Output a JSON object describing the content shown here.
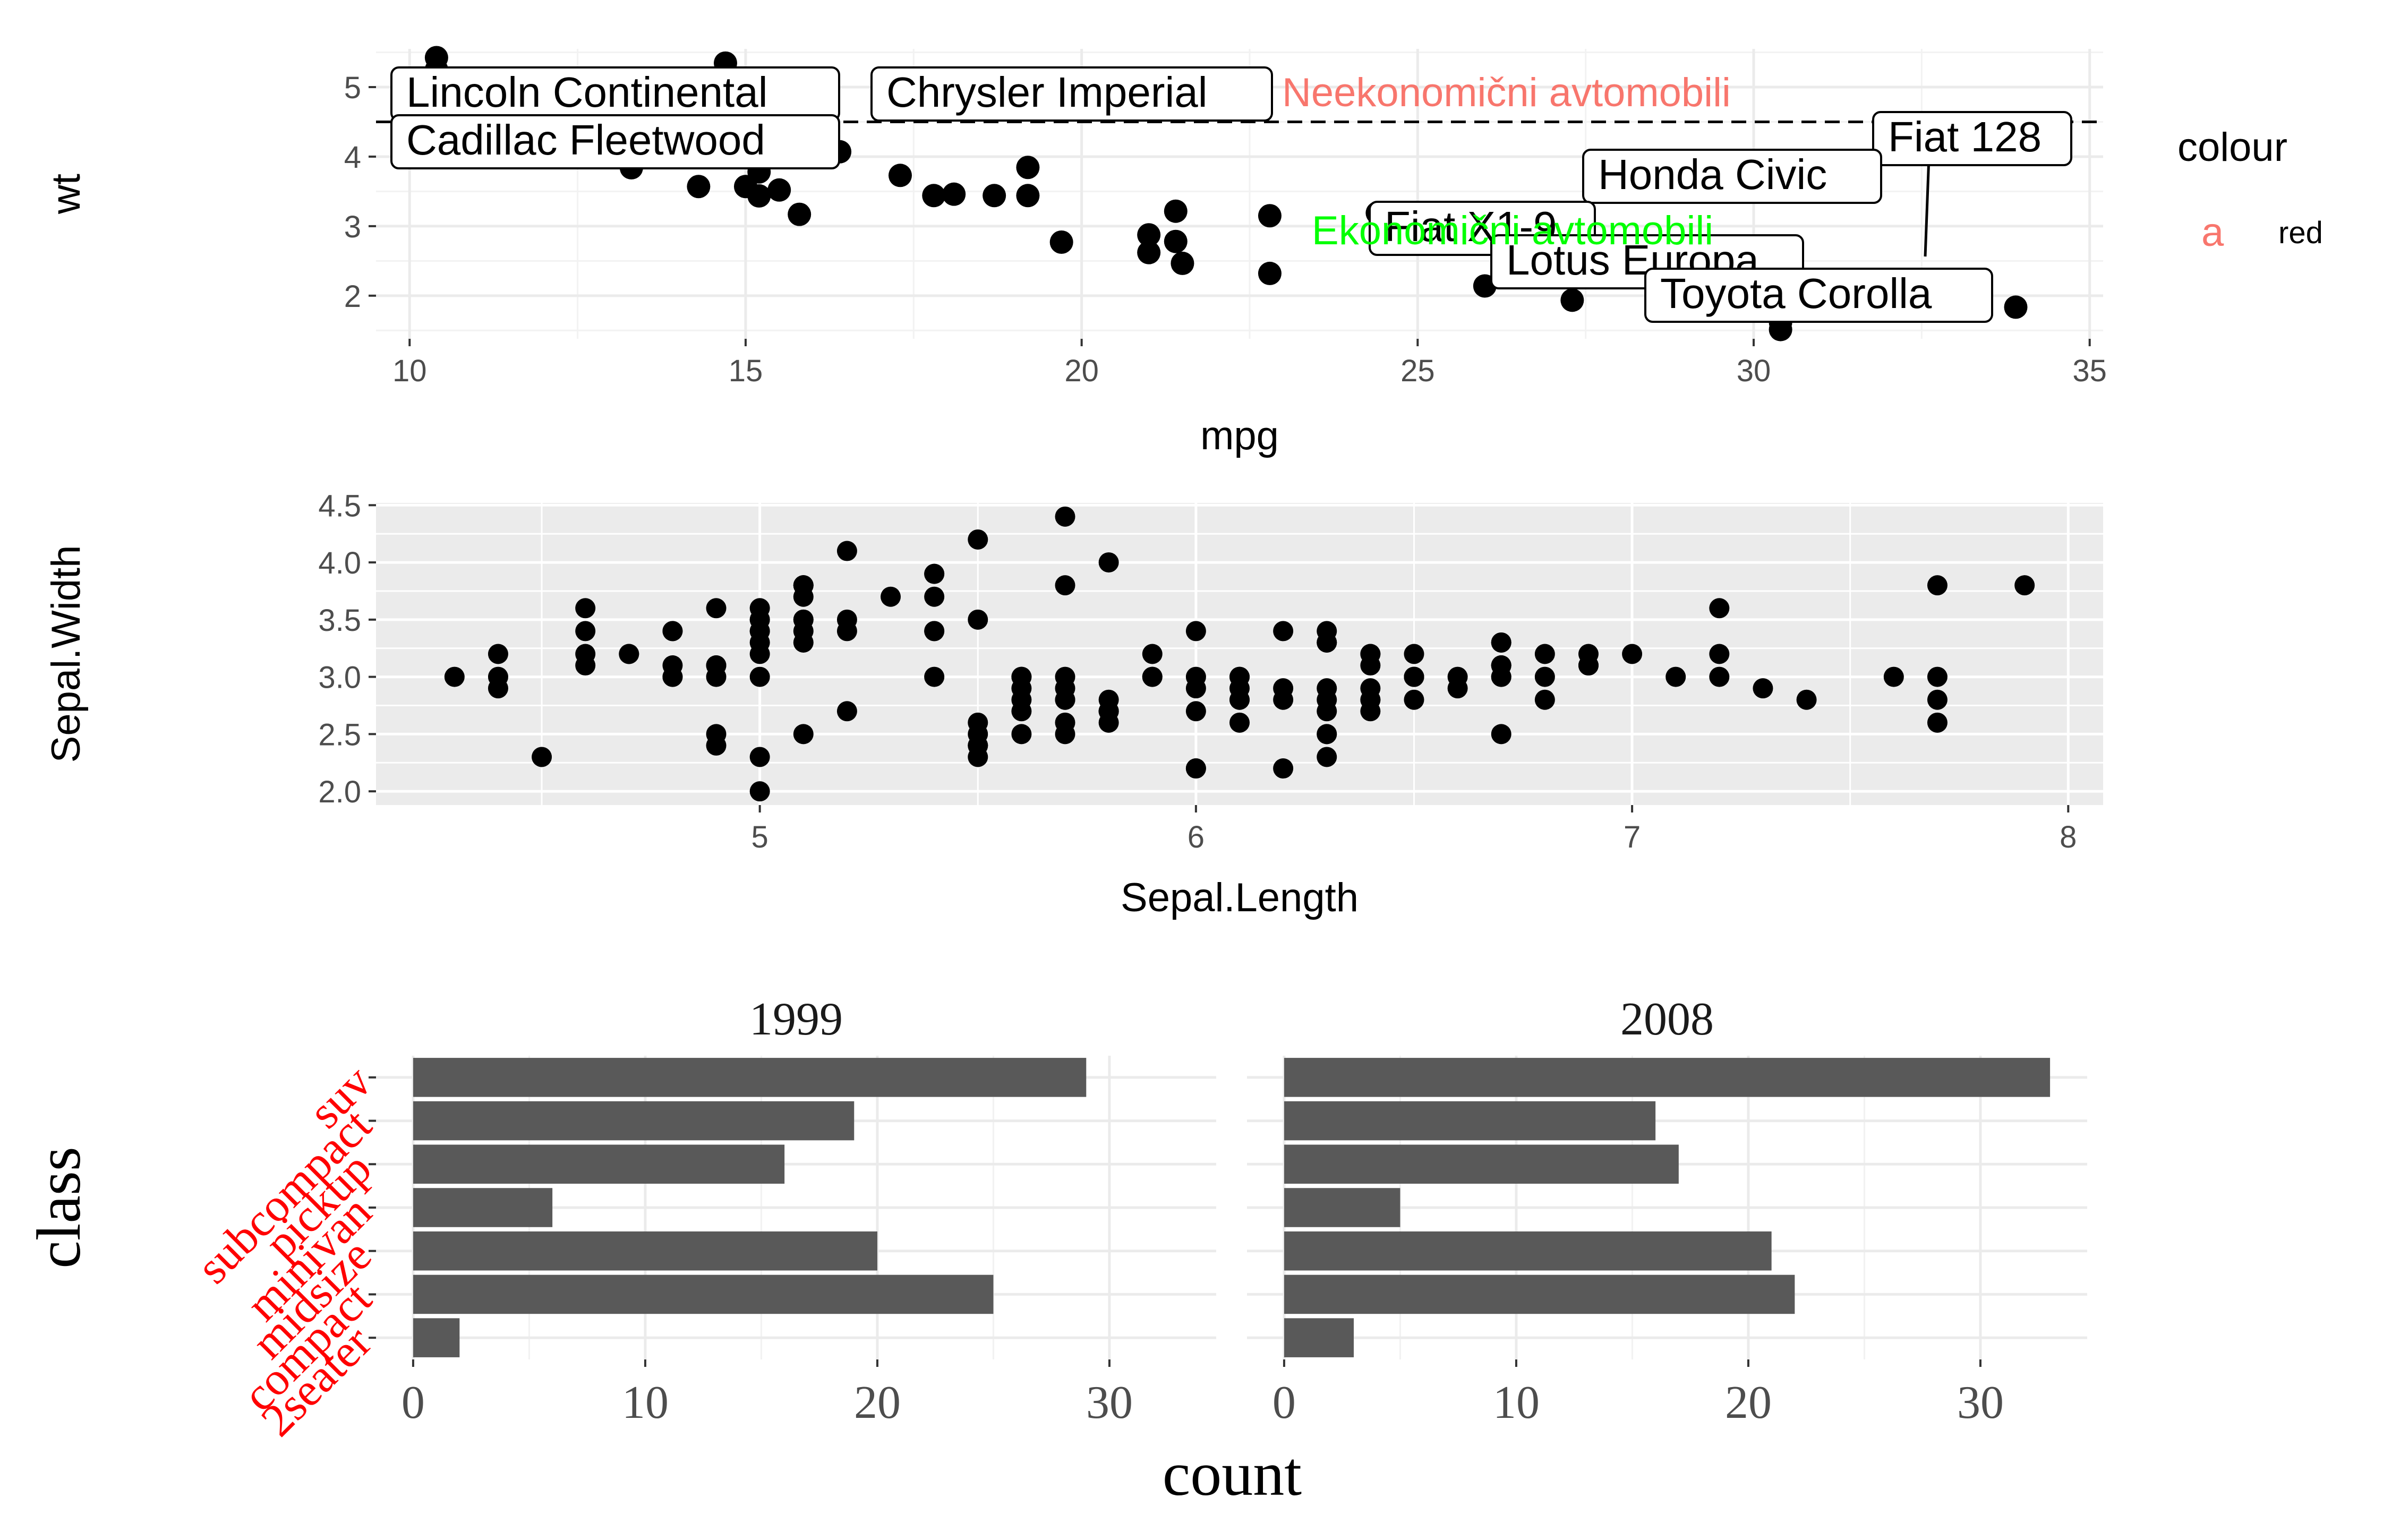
{
  "figure": {
    "chart_data": [
      {
        "type": "scatter",
        "panel": "mtcars",
        "xlabel": "mpg",
        "ylabel": "wt",
        "xlim": [
          9.5,
          35.2
        ],
        "ylim": [
          1.38,
          5.55
        ],
        "xticks": [
          10,
          15,
          20,
          25,
          30,
          35
        ],
        "yticks": [
          2,
          3,
          4,
          5
        ],
        "grid": true,
        "background": "white",
        "hline": 4.5,
        "points": [
          [
            21.0,
            2.62
          ],
          [
            21.0,
            2.875
          ],
          [
            22.8,
            2.32
          ],
          [
            21.4,
            3.215
          ],
          [
            18.7,
            3.44
          ],
          [
            18.1,
            3.46
          ],
          [
            14.3,
            3.57
          ],
          [
            24.4,
            3.19
          ],
          [
            22.8,
            3.15
          ],
          [
            19.2,
            3.44
          ],
          [
            17.8,
            3.44
          ],
          [
            16.4,
            4.07
          ],
          [
            17.3,
            3.73
          ],
          [
            15.2,
            3.78
          ],
          [
            10.4,
            5.25
          ],
          [
            10.4,
            5.424
          ],
          [
            14.7,
            5.345
          ],
          [
            32.4,
            2.2
          ],
          [
            30.4,
            1.615
          ],
          [
            33.9,
            1.835
          ],
          [
            21.5,
            2.465
          ],
          [
            15.5,
            3.52
          ],
          [
            15.2,
            3.435
          ],
          [
            13.3,
            3.84
          ],
          [
            19.2,
            3.845
          ],
          [
            27.3,
            1.935
          ],
          [
            26.0,
            2.14
          ],
          [
            30.4,
            1.513
          ],
          [
            15.8,
            3.17
          ],
          [
            19.7,
            2.77
          ],
          [
            15.0,
            3.57
          ],
          [
            21.4,
            2.78
          ]
        ],
        "labels": [
          {
            "text": "Lincoln Continental",
            "x": 10.4,
            "y": 5.424
          },
          {
            "text": "Cadillac Fleetwood",
            "x": 10.4,
            "y": 5.25
          },
          {
            "text": "Chrysler Imperial",
            "x": 14.7,
            "y": 5.345
          },
          {
            "text": "Fiat 128",
            "x": 32.4,
            "y": 2.2
          },
          {
            "text": "Honda Civic",
            "x": 30.4,
            "y": 1.615
          },
          {
            "text": "Fiat X1-9",
            "x": 27.3,
            "y": 1.935
          },
          {
            "text": "Lotus Europa",
            "x": 30.4,
            "y": 1.513
          },
          {
            "text": "Toyota Corolla",
            "x": 33.9,
            "y": 1.835
          }
        ],
        "annotations": [
          {
            "text": "Neekonomični avtomobili",
            "color": "#F8766D"
          },
          {
            "text": "Ekonomični avtomobili",
            "color": "#00FF00"
          }
        ],
        "legend": {
          "title": "colour",
          "key_glyph": "a",
          "label": "red",
          "key_color": "#F8766D",
          "position": "right"
        }
      },
      {
        "type": "scatter",
        "panel": "iris",
        "xlabel": "Sepal.Length",
        "ylabel": "Sepal.Width",
        "xlim": [
          4.12,
          8.08
        ],
        "ylim": [
          1.88,
          4.52
        ],
        "xticks": [
          5,
          6,
          7,
          8
        ],
        "yticks": [
          2.0,
          2.5,
          3.0,
          3.5,
          4.0,
          4.5
        ],
        "ytick_labels": [
          "2.0",
          "2.5",
          "3.0",
          "3.5",
          "4.0",
          "4.5"
        ],
        "grid": true,
        "background": "#EBEBEB",
        "points": [
          [
            5.1,
            3.5
          ],
          [
            4.9,
            3.0
          ],
          [
            4.7,
            3.2
          ],
          [
            4.6,
            3.1
          ],
          [
            5.0,
            3.6
          ],
          [
            5.4,
            3.9
          ],
          [
            4.6,
            3.4
          ],
          [
            5.0,
            3.4
          ],
          [
            4.4,
            2.9
          ],
          [
            4.9,
            3.1
          ],
          [
            5.4,
            3.7
          ],
          [
            4.8,
            3.4
          ],
          [
            4.8,
            3.0
          ],
          [
            4.3,
            3.0
          ],
          [
            5.8,
            4.0
          ],
          [
            5.7,
            4.4
          ],
          [
            5.4,
            3.9
          ],
          [
            5.1,
            3.5
          ],
          [
            5.7,
            3.8
          ],
          [
            5.1,
            3.8
          ],
          [
            5.4,
            3.4
          ],
          [
            5.1,
            3.7
          ],
          [
            4.6,
            3.6
          ],
          [
            5.1,
            3.3
          ],
          [
            4.8,
            3.4
          ],
          [
            5.0,
            3.0
          ],
          [
            5.0,
            3.4
          ],
          [
            5.2,
            3.5
          ],
          [
            5.2,
            3.4
          ],
          [
            4.7,
            3.2
          ],
          [
            4.8,
            3.1
          ],
          [
            5.4,
            3.4
          ],
          [
            5.2,
            4.1
          ],
          [
            5.5,
            4.2
          ],
          [
            4.9,
            3.1
          ],
          [
            5.0,
            3.2
          ],
          [
            5.5,
            3.5
          ],
          [
            4.9,
            3.6
          ],
          [
            4.4,
            3.0
          ],
          [
            5.1,
            3.4
          ],
          [
            5.0,
            3.5
          ],
          [
            4.5,
            2.3
          ],
          [
            4.4,
            3.2
          ],
          [
            5.0,
            3.5
          ],
          [
            5.1,
            3.8
          ],
          [
            4.8,
            3.0
          ],
          [
            5.1,
            3.8
          ],
          [
            4.6,
            3.2
          ],
          [
            5.3,
            3.7
          ],
          [
            5.0,
            3.3
          ],
          [
            7.0,
            3.2
          ],
          [
            6.4,
            3.2
          ],
          [
            6.9,
            3.1
          ],
          [
            5.5,
            2.3
          ],
          [
            6.5,
            2.8
          ],
          [
            5.7,
            2.8
          ],
          [
            6.3,
            3.3
          ],
          [
            4.9,
            2.4
          ],
          [
            6.6,
            2.9
          ],
          [
            5.2,
            2.7
          ],
          [
            5.0,
            2.0
          ],
          [
            5.9,
            3.0
          ],
          [
            6.0,
            2.2
          ],
          [
            6.1,
            2.9
          ],
          [
            5.6,
            2.9
          ],
          [
            6.7,
            3.1
          ],
          [
            5.6,
            3.0
          ],
          [
            5.8,
            2.7
          ],
          [
            6.2,
            2.2
          ],
          [
            5.6,
            2.5
          ],
          [
            5.9,
            3.2
          ],
          [
            6.1,
            2.8
          ],
          [
            6.3,
            2.5
          ],
          [
            6.1,
            2.8
          ],
          [
            6.4,
            2.9
          ],
          [
            6.6,
            3.0
          ],
          [
            6.8,
            2.8
          ],
          [
            6.7,
            3.0
          ],
          [
            6.0,
            2.9
          ],
          [
            5.7,
            2.6
          ],
          [
            5.5,
            2.4
          ],
          [
            5.5,
            2.4
          ],
          [
            5.8,
            2.7
          ],
          [
            6.0,
            2.7
          ],
          [
            5.4,
            3.0
          ],
          [
            6.0,
            3.4
          ],
          [
            6.7,
            3.1
          ],
          [
            6.3,
            2.3
          ],
          [
            5.6,
            3.0
          ],
          [
            5.5,
            2.5
          ],
          [
            5.5,
            2.6
          ],
          [
            6.1,
            3.0
          ],
          [
            5.8,
            2.6
          ],
          [
            5.0,
            2.3
          ],
          [
            5.6,
            2.7
          ],
          [
            5.7,
            3.0
          ],
          [
            5.7,
            2.9
          ],
          [
            6.2,
            2.9
          ],
          [
            5.1,
            2.5
          ],
          [
            5.7,
            2.8
          ],
          [
            6.3,
            3.3
          ],
          [
            5.8,
            2.7
          ],
          [
            7.1,
            3.0
          ],
          [
            6.3,
            2.9
          ],
          [
            6.5,
            3.0
          ],
          [
            7.6,
            3.0
          ],
          [
            4.9,
            2.5
          ],
          [
            7.3,
            2.9
          ],
          [
            6.7,
            2.5
          ],
          [
            7.2,
            3.6
          ],
          [
            6.5,
            3.2
          ],
          [
            6.4,
            2.7
          ],
          [
            6.8,
            3.0
          ],
          [
            5.7,
            2.5
          ],
          [
            5.8,
            2.8
          ],
          [
            6.4,
            3.2
          ],
          [
            6.5,
            3.0
          ],
          [
            7.7,
            3.8
          ],
          [
            7.7,
            2.6
          ],
          [
            6.0,
            2.2
          ],
          [
            6.9,
            3.2
          ],
          [
            5.6,
            2.8
          ],
          [
            7.7,
            2.8
          ],
          [
            6.3,
            2.7
          ],
          [
            6.7,
            3.3
          ],
          [
            7.2,
            3.2
          ],
          [
            6.2,
            2.8
          ],
          [
            6.1,
            3.0
          ],
          [
            6.4,
            2.8
          ],
          [
            7.2,
            3.0
          ],
          [
            7.4,
            2.8
          ],
          [
            7.9,
            3.8
          ],
          [
            6.4,
            2.8
          ],
          [
            6.3,
            2.8
          ],
          [
            6.1,
            2.6
          ],
          [
            7.7,
            3.0
          ],
          [
            6.3,
            3.4
          ],
          [
            6.4,
            3.1
          ],
          [
            6.0,
            3.0
          ],
          [
            6.9,
            3.1
          ],
          [
            6.7,
            3.1
          ],
          [
            6.9,
            3.1
          ],
          [
            5.8,
            2.7
          ],
          [
            6.8,
            3.2
          ],
          [
            6.7,
            3.3
          ],
          [
            6.7,
            3.0
          ],
          [
            6.3,
            2.5
          ],
          [
            6.5,
            3.0
          ],
          [
            6.2,
            3.4
          ],
          [
            5.9,
            3.0
          ]
        ]
      },
      {
        "type": "bar",
        "orientation": "horizontal",
        "panel": "mpg",
        "xlabel": "count",
        "ylabel": "class",
        "categories": [
          "2seater",
          "compact",
          "midsize",
          "minivan",
          "pickup",
          "subcompact",
          "suv"
        ],
        "category_label_color": "#FF0000",
        "xlim": [
          -1.6,
          34.6
        ],
        "xticks": [
          0,
          10,
          20,
          30
        ],
        "facets": [
          {
            "title": "1999",
            "values": [
              2,
              25,
              20,
              6,
              16,
              19,
              29
            ]
          },
          {
            "title": "2008",
            "values": [
              3,
              22,
              21,
              5,
              17,
              16,
              33
            ]
          }
        ],
        "bar_color": "#595959",
        "grid": true
      }
    ]
  }
}
